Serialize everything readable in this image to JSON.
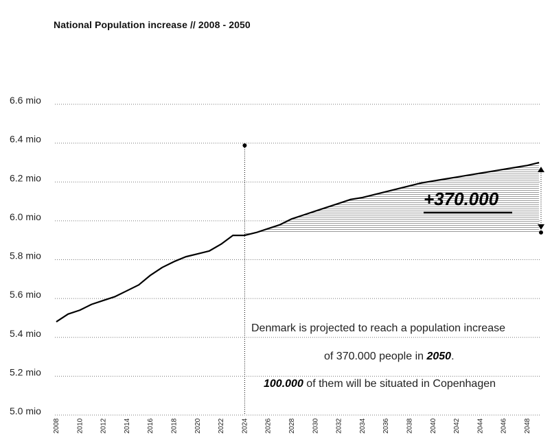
{
  "chart_data": {
    "type": "area",
    "title": "National Population increase //  2008 - 2050",
    "xlabel": "",
    "ylabel": "",
    "x_range": [
      2008,
      2049
    ],
    "ylim": [
      5.0,
      6.6
    ],
    "grid": true,
    "y_tick_values": [
      5.0,
      5.2,
      5.4,
      5.6,
      5.8,
      6.0,
      6.2,
      6.4,
      6.6
    ],
    "y_tick_labels": [
      "5.0 mio",
      "5.2 mio",
      "5.4 mio",
      "5.6 mio",
      "5.8 mio",
      "6.0 mio",
      "6.2 mio",
      "6.4 mio",
      "6.6 mio"
    ],
    "x_tick_labels": [
      "2008",
      "2010",
      "2012",
      "2014",
      "2016",
      "2018",
      "2020",
      "2022",
      "2024",
      "2026",
      "2028",
      "2030",
      "2032",
      "2034",
      "2036",
      "2038",
      "2040",
      "2042",
      "2044",
      "2046",
      "2048"
    ],
    "series": [
      {
        "x": [
          2008,
          2009,
          2010,
          2011,
          2012,
          2013,
          2014,
          2015,
          2016,
          2017,
          2018,
          2019,
          2020,
          2021,
          2022,
          2023,
          2024,
          2025,
          2026,
          2027,
          2028,
          2029,
          2030,
          2031,
          2032,
          2033,
          2034,
          2035,
          2036,
          2037,
          2038,
          2039,
          2040,
          2041,
          2042,
          2043,
          2044,
          2045,
          2046,
          2047,
          2048,
          2049
        ],
        "values": [
          5.48,
          5.52,
          5.54,
          5.57,
          5.59,
          5.61,
          5.64,
          5.67,
          5.72,
          5.76,
          5.79,
          5.815,
          5.83,
          5.845,
          5.88,
          5.925,
          5.925,
          5.94,
          5.96,
          5.98,
          6.01,
          6.03,
          6.05,
          6.07,
          6.09,
          6.11,
          6.12,
          6.135,
          6.15,
          6.165,
          6.18,
          6.195,
          6.205,
          6.215,
          6.225,
          6.235,
          6.245,
          6.255,
          6.265,
          6.275,
          6.285,
          6.3
        ]
      }
    ],
    "marker_year": 2024,
    "increase_baseline": 5.94,
    "annotation": {
      "value": "+370.000",
      "line1": "Denmark is projected to reach a population increase",
      "line2_prefix": "of 370.000 people in ",
      "line2_bold": "2050",
      "line2_suffix": ".",
      "line3_bold": "100.000",
      "line3_suffix": " of them will be situated in Copenhagen"
    }
  }
}
